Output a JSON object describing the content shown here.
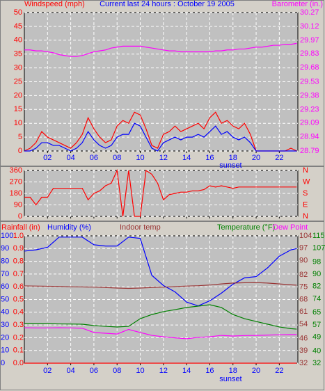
{
  "chart_data": [
    {
      "type": "line",
      "title": "Current last 24 hours : October 19 2005",
      "y_label": "Windspeed (mph)",
      "y2_label": "Barometer (in.)",
      "x": [
        0,
        0.5,
        1,
        1.5,
        2,
        2.5,
        3,
        3.5,
        4,
        4.5,
        5,
        5.5,
        6,
        6.5,
        7,
        7.5,
        8,
        8.5,
        9,
        9.5,
        10,
        10.5,
        11,
        11.5,
        12,
        12.5,
        13,
        13.5,
        14,
        14.5,
        15,
        15.5,
        16,
        16.5,
        17,
        17.5,
        18,
        18.5,
        19,
        19.5,
        20,
        20.5,
        21,
        21.5,
        22,
        22.5,
        23,
        23.5
      ],
      "xlim": [
        0,
        23.6
      ],
      "xticks": [
        {
          "value": 2,
          "label": "02"
        },
        {
          "value": 4,
          "label": "04"
        },
        {
          "value": 6,
          "label": "06"
        },
        {
          "value": 8,
          "label": "08"
        },
        10,
        12,
        14,
        16,
        18,
        20,
        22
      ],
      "ylim": [
        0,
        50
      ],
      "yticks": [
        0,
        5,
        10,
        15,
        20,
        25,
        30,
        35,
        40,
        45,
        50
      ],
      "y2lim": [
        28.79,
        30.27
      ],
      "y2ticks": [
        28.79,
        28.94,
        29.09,
        29.23,
        29.38,
        29.53,
        29.68,
        29.83,
        29.97,
        30.12,
        30.27
      ],
      "grid": true,
      "annotations": [
        {
          "text": "sunset",
          "x": 17.8
        }
      ],
      "series": [
        {
          "color": "#ff0000",
          "values": [
            0,
            1,
            3,
            7,
            5,
            4,
            3,
            2,
            1,
            3,
            6,
            12,
            8,
            5,
            3,
            4,
            9,
            11,
            10,
            14,
            13,
            8,
            2,
            1,
            6,
            7,
            9,
            7,
            8,
            9,
            10,
            8,
            12,
            14,
            10,
            11,
            9,
            8,
            10,
            6,
            0,
            0,
            0,
            0,
            0,
            0,
            1,
            0
          ]
        },
        {
          "color": "#0000ff",
          "values": [
            0,
            0,
            1,
            3,
            3,
            2,
            2,
            1,
            0,
            1,
            3,
            7,
            4,
            2,
            1,
            2,
            5,
            6,
            6,
            10,
            9,
            5,
            1,
            0,
            3,
            4,
            5,
            4,
            5,
            5,
            6,
            5,
            7,
            9,
            6,
            7,
            5,
            4,
            5,
            3,
            0,
            0,
            0,
            0,
            0,
            0,
            0,
            0
          ]
        },
        {
          "color": "#ff00ff",
          "axis": "y2",
          "values": [
            29.87,
            29.87,
            29.86,
            29.86,
            29.85,
            29.84,
            29.82,
            29.81,
            29.8,
            29.8,
            29.81,
            29.83,
            29.85,
            29.86,
            29.87,
            29.89,
            29.9,
            29.91,
            29.91,
            29.91,
            29.91,
            29.9,
            29.89,
            29.88,
            29.87,
            29.86,
            29.86,
            29.85,
            29.85,
            29.85,
            29.85,
            29.85,
            29.85,
            29.86,
            29.86,
            29.87,
            29.87,
            29.88,
            29.88,
            29.89,
            29.9,
            29.9,
            29.91,
            29.92,
            29.92,
            29.93,
            29.93,
            29.94
          ]
        }
      ]
    },
    {
      "type": "line",
      "x": [
        0,
        0.5,
        1,
        1.5,
        2,
        2.5,
        3,
        3.5,
        4,
        4.5,
        5,
        5.5,
        6,
        6.5,
        7,
        7.5,
        8,
        8.5,
        9,
        9.5,
        10,
        10.5,
        11,
        11.5,
        12,
        12.5,
        13,
        13.5,
        14,
        14.5,
        15,
        15.5,
        16,
        16.5,
        17,
        17.5,
        18,
        18.5,
        19,
        19.5,
        20,
        20.5,
        21,
        21.5,
        22,
        22.5,
        23,
        23.5
      ],
      "xlim": [
        0,
        23.6
      ],
      "xticks": [
        {
          "value": 2,
          "label": "02"
        },
        {
          "value": 4,
          "label": "04"
        },
        {
          "value": 6,
          "label": "06"
        },
        {
          "value": 8,
          "label": "08"
        },
        10,
        12,
        14,
        16,
        18,
        20,
        22
      ],
      "ylim": [
        0,
        360
      ],
      "yticks": [
        0,
        90,
        180,
        270,
        360
      ],
      "y2lim": [
        0,
        360
      ],
      "y2ticks": [
        {
          "value": 0,
          "label": "N"
        },
        {
          "value": 90,
          "label": "E"
        },
        {
          "value": 180,
          "label": "S"
        },
        {
          "value": 270,
          "label": "W"
        },
        {
          "value": 360,
          "label": "N"
        }
      ],
      "grid": true,
      "series": [
        {
          "color": "#ff0000",
          "values": [
            150,
            150,
            90,
            150,
            150,
            220,
            220,
            220,
            220,
            220,
            220,
            130,
            180,
            200,
            240,
            260,
            360,
            0,
            360,
            0,
            0,
            360,
            330,
            260,
            130,
            170,
            180,
            190,
            190,
            200,
            200,
            210,
            240,
            230,
            240,
            230,
            220,
            230,
            230,
            230,
            230,
            230,
            230,
            230,
            230,
            230,
            230,
            230
          ]
        }
      ]
    },
    {
      "type": "line",
      "x": [
        0,
        1,
        2,
        3,
        4,
        5,
        6,
        7,
        8,
        9,
        10,
        11,
        12,
        13,
        14,
        15,
        16,
        17,
        18,
        19,
        20,
        21,
        22,
        23,
        23.5
      ],
      "xlim": [
        0,
        23.6
      ],
      "xticks": [
        {
          "value": 2,
          "label": "02"
        },
        {
          "value": 4,
          "label": "04"
        },
        {
          "value": 6,
          "label": "06"
        },
        {
          "value": 8,
          "label": "08"
        },
        10,
        12,
        14,
        16,
        18,
        20,
        22
      ],
      "ylim": [
        0,
        100
      ],
      "yticks": [
        0,
        10,
        20,
        30,
        40,
        50,
        60,
        70,
        80,
        90,
        100
      ],
      "y2lim": [
        0,
        1
      ],
      "y2ticks": [
        {
          "value": 0,
          "label": "0.0"
        },
        0.1,
        0.2,
        0.3,
        0.4,
        0.5,
        0.6,
        0.7,
        0.8,
        0.9,
        {
          "value": 1,
          "label": "1.0"
        }
      ],
      "y3lim": [
        32,
        104
      ],
      "y3ticks": [
        32,
        39,
        46,
        54,
        61,
        68,
        75,
        82,
        90,
        97,
        104
      ],
      "y4lim": [
        32,
        115
      ],
      "y4ticks": [
        32,
        40,
        49,
        57,
        65,
        74,
        82,
        90,
        98,
        107,
        115
      ],
      "grid": true,
      "annotations": [
        {
          "text": "sunset",
          "x": 17.8
        }
      ],
      "series": [
        {
          "name": "Rainfall (in)",
          "color": "#ff0000",
          "axis": "y2",
          "values": [
            0,
            0,
            0,
            0,
            0,
            0,
            0,
            0,
            0,
            0,
            0,
            0,
            0,
            0,
            0,
            0,
            0,
            0,
            0,
            0,
            0,
            0,
            0,
            0,
            0
          ]
        },
        {
          "name": "Humidity (%)",
          "color": "#0000ff",
          "values": [
            88,
            89,
            91,
            99,
            99,
            99,
            93,
            92,
            92,
            99,
            98,
            69,
            61,
            56,
            48,
            45,
            49,
            55,
            62,
            67,
            68,
            75,
            84,
            89,
            90
          ]
        },
        {
          "name": "Indoor temp",
          "color": "#993333",
          "axis": "y3",
          "values": [
            75.7,
            75.6,
            75.5,
            75.4,
            75.2,
            75.1,
            75,
            74.8,
            74.5,
            74.3,
            74.5,
            74.8,
            75,
            75.3,
            75.6,
            75.8,
            76.2,
            76.8,
            77.3,
            77.5,
            77.6,
            77.3,
            76.8,
            76.3,
            76.1
          ]
        },
        {
          "name": "Temperature (°F)",
          "color": "#008000",
          "axis": "y4",
          "values": [
            57.9,
            57.8,
            57.8,
            57.6,
            57.5,
            57.4,
            56.5,
            56,
            55.6,
            56,
            61,
            63.7,
            65.6,
            66.9,
            68.3,
            69.2,
            70.1,
            68.3,
            63.7,
            61,
            59.2,
            57.4,
            55.6,
            54.5,
            54.2
          ]
        },
        {
          "name": "Dew Point",
          "color": "#ff00ff",
          "axis": "y4",
          "values": [
            55.1,
            55,
            55,
            55.1,
            55,
            54.8,
            52,
            51.5,
            51,
            54,
            52,
            50.1,
            49.2,
            48.5,
            47.9,
            48.8,
            49.2,
            50.1,
            49.7,
            50,
            50.1,
            50.3,
            50.5,
            50.6,
            50.6
          ]
        }
      ]
    }
  ]
}
